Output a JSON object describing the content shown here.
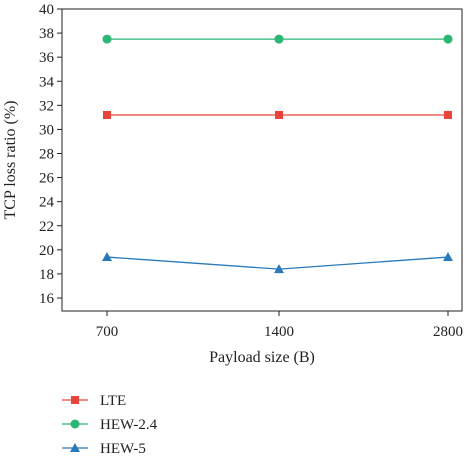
{
  "chart_data": {
    "type": "line",
    "categories": [
      "700",
      "1400",
      "2800"
    ],
    "xlabel": "Payload size (B)",
    "ylabel": "TCP loss ratio (%)",
    "ylim": [
      15,
      40
    ],
    "yticks": [
      16,
      18,
      20,
      22,
      24,
      26,
      28,
      30,
      32,
      34,
      36,
      38,
      40
    ],
    "grid": false,
    "legend_position": "bottom",
    "series": [
      {
        "name": "LTE",
        "values": [
          31.2,
          31.2,
          31.2
        ],
        "color": "#e8443a",
        "marker": "square"
      },
      {
        "name": "HEW-2.4",
        "values": [
          37.5,
          37.5,
          37.5
        ],
        "color": "#2bb673",
        "marker": "circle"
      },
      {
        "name": "HEW-5",
        "values": [
          19.4,
          18.4,
          19.4
        ],
        "color": "#2a7ab9",
        "marker": "triangle"
      }
    ]
  }
}
